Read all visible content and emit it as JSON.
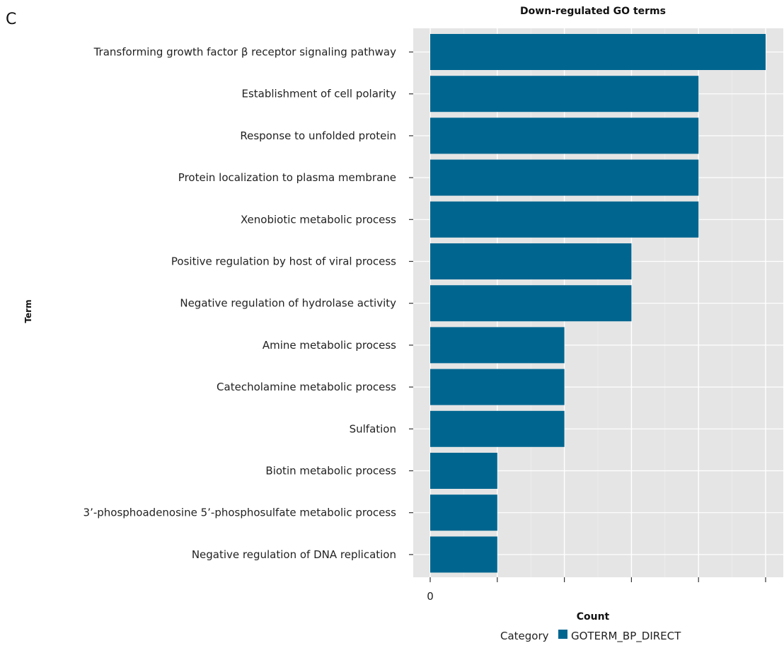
{
  "panel_label": "C",
  "chart_data": {
    "type": "bar",
    "orientation": "horizontal",
    "title": "Down-regulated GO terms",
    "xlabel": "Count",
    "ylabel": "Term",
    "xlim": [
      0,
      72
    ],
    "xticks": [
      0,
      20,
      40,
      60
    ],
    "grid": true,
    "legend": {
      "title": "Category",
      "position": "bottom",
      "entries": [
        {
          "name": "GOTERM_BP_DIRECT",
          "color": "#006690"
        }
      ]
    },
    "categories": [
      "Transforming growth factor β receptor signaling pathway",
      "Establishment of cell polarity",
      "Response to unfolded protein",
      "Protein localization to plasma membrane",
      "Xenobiotic metabolic process",
      "Positive regulation by host of viral process",
      "Negative regulation of hydrolase activity",
      "Amine metabolic process",
      "Catecholamine metabolic process",
      "Sulfation",
      "Biotin metabolic process",
      "3’-phosphoadenosine 5’-phosphosulfate metabolic process",
      "Negative regulation of DNA replication"
    ],
    "values": [
      10,
      8,
      8,
      8,
      8,
      6,
      6,
      4,
      4,
      4,
      2,
      2,
      2
    ],
    "series": [
      {
        "name": "GOTERM_BP_DIRECT",
        "values": [
          10,
          8,
          8,
          8,
          8,
          6,
          6,
          4,
          4,
          4,
          2,
          2,
          2
        ]
      }
    ],
    "colors": {
      "bar": "#006690",
      "panel": "#e5e5e5",
      "grid_major": "#ffffff",
      "grid_minor": "#f0f0f0"
    }
  }
}
